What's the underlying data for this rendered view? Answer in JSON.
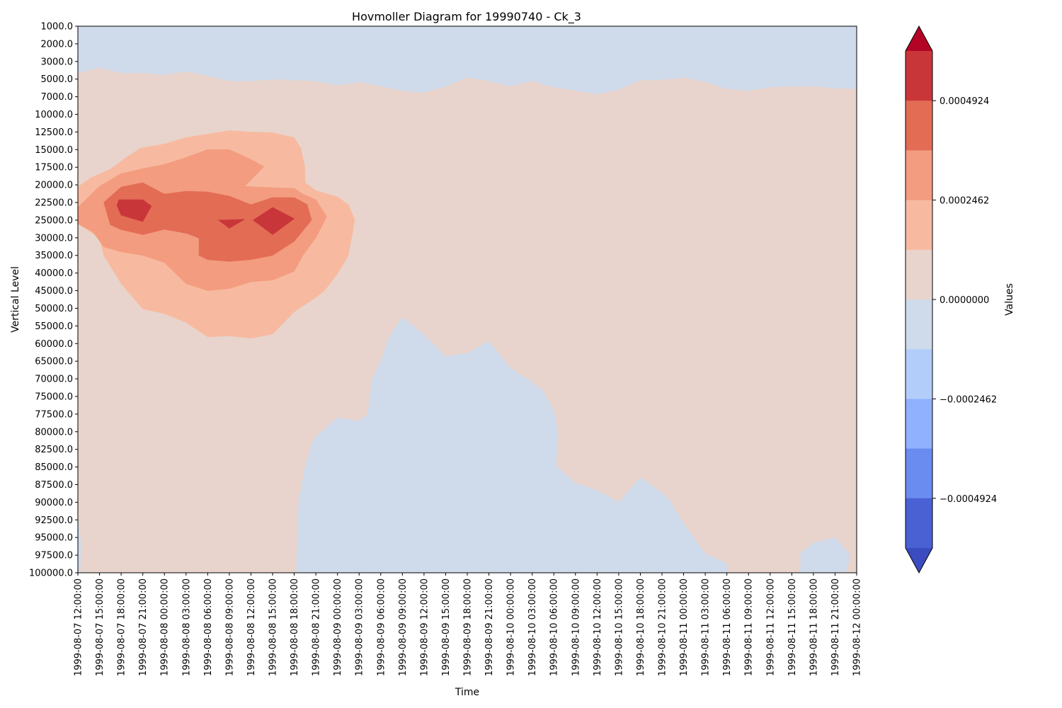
{
  "chart_data": {
    "type": "heatmap",
    "title": "Hovmoller Diagram for 19990740 - Ck_3",
    "xlabel": "Time",
    "ylabel": "Vertical Level",
    "colorbar_label": "Values",
    "x": [
      "1999-08-07 12:00:00",
      "1999-08-07 15:00:00",
      "1999-08-07 18:00:00",
      "1999-08-07 21:00:00",
      "1999-08-08 00:00:00",
      "1999-08-08 03:00:00",
      "1999-08-08 06:00:00",
      "1999-08-08 09:00:00",
      "1999-08-08 12:00:00",
      "1999-08-08 15:00:00",
      "1999-08-08 18:00:00",
      "1999-08-08 21:00:00",
      "1999-08-09 00:00:00",
      "1999-08-09 03:00:00",
      "1999-08-09 06:00:00",
      "1999-08-09 09:00:00",
      "1999-08-09 12:00:00",
      "1999-08-09 15:00:00",
      "1999-08-09 18:00:00",
      "1999-08-09 21:00:00",
      "1999-08-10 00:00:00",
      "1999-08-10 03:00:00",
      "1999-08-10 06:00:00",
      "1999-08-10 09:00:00",
      "1999-08-10 12:00:00",
      "1999-08-10 15:00:00",
      "1999-08-10 18:00:00",
      "1999-08-10 21:00:00",
      "1999-08-11 00:00:00",
      "1999-08-11 03:00:00",
      "1999-08-11 06:00:00",
      "1999-08-11 09:00:00",
      "1999-08-11 12:00:00",
      "1999-08-11 15:00:00",
      "1999-08-11 18:00:00",
      "1999-08-11 21:00:00",
      "1999-08-12 00:00:00"
    ],
    "y": [
      "1000.0",
      "2000.0",
      "3000.0",
      "5000.0",
      "7000.0",
      "10000.0",
      "12500.0",
      "15000.0",
      "17500.0",
      "20000.0",
      "22500.0",
      "25000.0",
      "30000.0",
      "35000.0",
      "40000.0",
      "45000.0",
      "50000.0",
      "55000.0",
      "60000.0",
      "65000.0",
      "70000.0",
      "75000.0",
      "77500.0",
      "80000.0",
      "82500.0",
      "85000.0",
      "87500.0",
      "90000.0",
      "92500.0",
      "95000.0",
      "97500.0",
      "100000.0"
    ],
    "y_inverted": true,
    "colorbar": {
      "ticks": [
        {
          "value": 0.0004924,
          "label": "0.0004924"
        },
        {
          "value": 0.0002462,
          "label": "0.0002462"
        },
        {
          "value": 0,
          "label": "0.0000000"
        },
        {
          "value": -0.0002462,
          "label": "−0.0002462"
        },
        {
          "value": -0.0004924,
          "label": "−0.0004924"
        }
      ],
      "levels_top_to_bottom": [
        "#b40426",
        "#c9363a",
        "#e36c55",
        "#f39c7f",
        "#f7baa0",
        "#e8d4cc",
        "#cfdaea",
        "#b3cdfb",
        "#8fb1fe",
        "#6a8bef",
        "#4961d2",
        "#3b4cc0"
      ],
      "extend": "both"
    },
    "regions": [
      {
        "name": "upper-negative-band",
        "color": "#cfdaea",
        "points": [
          [
            0,
            1000
          ],
          [
            36,
            1000
          ],
          [
            36,
            6100
          ],
          [
            35,
            6000
          ],
          [
            34,
            5800
          ],
          [
            33,
            5800
          ],
          [
            32,
            5900
          ],
          [
            31,
            6300
          ],
          [
            30,
            6100
          ],
          [
            29,
            5300
          ],
          [
            28,
            4800
          ],
          [
            27,
            5100
          ],
          [
            26,
            5100
          ],
          [
            25,
            6200
          ],
          [
            24,
            6700
          ],
          [
            23,
            6300
          ],
          [
            22,
            5900
          ],
          [
            21,
            5200
          ],
          [
            20,
            5800
          ],
          [
            19,
            5200
          ],
          [
            18,
            4800
          ],
          [
            17,
            5800
          ],
          [
            16,
            6500
          ],
          [
            15,
            6300
          ],
          [
            14,
            5800
          ],
          [
            13,
            5300
          ],
          [
            12,
            5700
          ],
          [
            11,
            5200
          ],
          [
            10,
            5100
          ],
          [
            9,
            5000
          ],
          [
            8,
            5200
          ],
          [
            7,
            5200
          ],
          [
            6,
            4600
          ],
          [
            5,
            4100
          ],
          [
            4,
            4500
          ],
          [
            3,
            4300
          ],
          [
            2,
            4300
          ],
          [
            1,
            3700
          ],
          [
            0,
            4300
          ]
        ]
      },
      {
        "name": "lower-negative-region",
        "color": "#cfdaea",
        "points": [
          [
            10.1,
            100000
          ],
          [
            10.2,
            90000
          ],
          [
            10.5,
            85000
          ],
          [
            10.9,
            81000
          ],
          [
            12,
            78000
          ],
          [
            13,
            78500
          ],
          [
            13.4,
            77500
          ],
          [
            13.6,
            70000
          ],
          [
            14,
            65000
          ],
          [
            14.4,
            58000
          ],
          [
            15,
            52500
          ],
          [
            16,
            57500
          ],
          [
            17,
            63700
          ],
          [
            18,
            62700
          ],
          [
            19,
            59400
          ],
          [
            20,
            67000
          ],
          [
            21,
            71000
          ],
          [
            21.5,
            73500
          ],
          [
            22,
            77000
          ],
          [
            22.2,
            80000
          ],
          [
            22.1,
            84800
          ],
          [
            23,
            87300
          ],
          [
            24,
            88300
          ],
          [
            25,
            90000
          ],
          [
            26,
            86500
          ],
          [
            27,
            88700
          ],
          [
            27.3,
            89500
          ],
          [
            28,
            93000
          ],
          [
            29,
            97300
          ],
          [
            30,
            98700
          ],
          [
            30,
            100000
          ]
        ]
      },
      {
        "name": "lower-left-negative-sliver",
        "color": "#cfdaea",
        "points": [
          [
            0,
            92500
          ],
          [
            0.15,
            96000
          ],
          [
            0.1,
            100000
          ],
          [
            0,
            100000
          ]
        ]
      },
      {
        "name": "lower-right-negative-patch",
        "color": "#cfdaea",
        "points": [
          [
            33.4,
            100000
          ],
          [
            33.4,
            97200
          ],
          [
            34,
            95800
          ],
          [
            35,
            95000
          ],
          [
            35.7,
            97500
          ],
          [
            35.5,
            100000
          ]
        ]
      },
      {
        "name": "positive-level-1",
        "color": "#f7baa0",
        "points": [
          [
            0,
            20300
          ],
          [
            0.6,
            19000
          ],
          [
            1.5,
            17800
          ],
          [
            2.2,
            16200
          ],
          [
            2.9,
            14800
          ],
          [
            4,
            14200
          ],
          [
            5,
            13300
          ],
          [
            6,
            12800
          ],
          [
            7,
            12300
          ],
          [
            8,
            12500
          ],
          [
            9,
            12600
          ],
          [
            10,
            13300
          ],
          [
            10.3,
            14800
          ],
          [
            10.5,
            17600
          ],
          [
            10.5,
            19700
          ],
          [
            11,
            20800
          ],
          [
            12,
            21700
          ],
          [
            12.5,
            22800
          ],
          [
            12.8,
            25000
          ],
          [
            12.5,
            35000
          ],
          [
            12,
            40200
          ],
          [
            11.4,
            45000
          ],
          [
            11,
            46900
          ],
          [
            10,
            51000
          ],
          [
            9,
            57300
          ],
          [
            8,
            58500
          ],
          [
            7,
            57800
          ],
          [
            6,
            58100
          ],
          [
            5,
            54000
          ],
          [
            4,
            51500
          ],
          [
            3,
            50200
          ],
          [
            2,
            43000
          ],
          [
            1.2,
            35000
          ],
          [
            1,
            30100
          ],
          [
            0,
            26000
          ]
        ]
      },
      {
        "name": "positive-level-2",
        "color": "#f39c7f",
        "points": [
          [
            0,
            23200
          ],
          [
            1,
            20200
          ],
          [
            2,
            18400
          ],
          [
            3,
            17700
          ],
          [
            4,
            17100
          ],
          [
            5,
            16100
          ],
          [
            6,
            15000
          ],
          [
            7,
            15000
          ],
          [
            8,
            16400
          ],
          [
            8.6,
            17400
          ],
          [
            8,
            19300
          ],
          [
            7.7,
            20200
          ],
          [
            9,
            20400
          ],
          [
            10,
            20500
          ],
          [
            10.4,
            21300
          ],
          [
            11,
            22100
          ],
          [
            11.5,
            24500
          ],
          [
            11,
            30000
          ],
          [
            10.4,
            35000
          ],
          [
            10,
            39500
          ],
          [
            9,
            42000
          ],
          [
            8,
            42500
          ],
          [
            7,
            44400
          ],
          [
            6,
            45000
          ],
          [
            5,
            43000
          ],
          [
            4,
            37000
          ],
          [
            3,
            35000
          ],
          [
            2,
            34000
          ],
          [
            1.2,
            32600
          ],
          [
            0.7,
            28300
          ],
          [
            0,
            26000
          ]
        ]
      },
      {
        "name": "positive-level-3",
        "color": "#e36c55",
        "points": [
          [
            1.2,
            22500
          ],
          [
            2,
            20300
          ],
          [
            3,
            19700
          ],
          [
            4,
            21300
          ],
          [
            5,
            20900
          ],
          [
            6,
            21000
          ],
          [
            7,
            21600
          ],
          [
            8,
            22800
          ],
          [
            9,
            21800
          ],
          [
            10,
            21800
          ],
          [
            10.6,
            22800
          ],
          [
            10.8,
            25000
          ],
          [
            10,
            31000
          ],
          [
            9,
            35000
          ],
          [
            8,
            36200
          ],
          [
            7,
            36700
          ],
          [
            6,
            36200
          ],
          [
            5.6,
            35000
          ],
          [
            5.6,
            30100
          ],
          [
            5,
            28700
          ],
          [
            4,
            27600
          ],
          [
            3,
            29100
          ],
          [
            2,
            27700
          ],
          [
            1.5,
            26300
          ]
        ]
      },
      {
        "name": "positive-core-1",
        "color": "#c9363a",
        "points": [
          [
            1.9,
            22100
          ],
          [
            3,
            22100
          ],
          [
            3.4,
            23000
          ],
          [
            3,
            25400
          ],
          [
            2,
            24300
          ],
          [
            1.8,
            22900
          ]
        ]
      },
      {
        "name": "positive-core-2",
        "color": "#c9363a",
        "points": [
          [
            8.1,
            25000
          ],
          [
            9,
            23200
          ],
          [
            10,
            24800
          ],
          [
            9,
            29100
          ]
        ]
      },
      {
        "name": "positive-core-3",
        "color": "#c9363a",
        "points": [
          [
            6.5,
            25000
          ],
          [
            7.7,
            24900
          ],
          [
            7,
            27300
          ]
        ]
      }
    ]
  }
}
